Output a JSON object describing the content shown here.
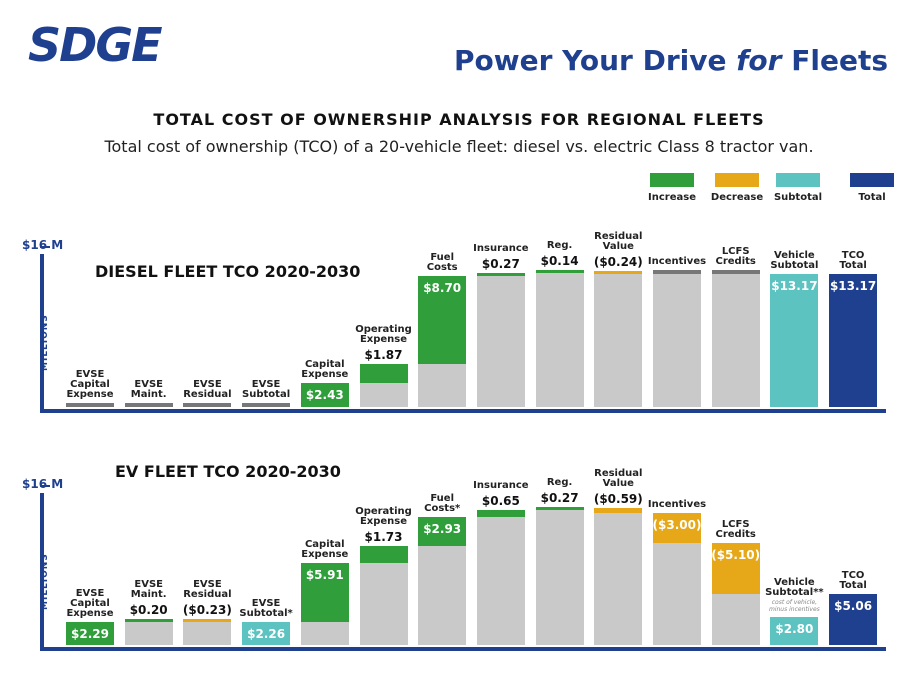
{
  "header": {
    "logo": "SDGE",
    "tagline_parts": [
      "Power Your Drive ",
      "for",
      " Fleets"
    ],
    "title": "TOTAL COST OF OWNERSHIP ANALYSIS FOR REGIONAL FLEETS",
    "subtitle": "Total cost of ownership (TCO) of a 20-vehicle fleet: diesel vs. electric Class 8 tractor van."
  },
  "legend": [
    {
      "name": "Increase",
      "color": "#2f9e3b"
    },
    {
      "name": "Decrease",
      "color": "#e6a718"
    },
    {
      "name": "Subtotal",
      "color": "#5cc3c0"
    },
    {
      "name": "Total",
      "color": "#1f3f8f"
    }
  ],
  "axis_label": "MILLIONS",
  "chart_data": [
    {
      "type": "waterfall",
      "title": "DIESEL FLEET TCO 2020-2030",
      "categories": [
        "EVSE\nCapital\nExpense",
        "EVSE\nMaint.",
        "EVSE\nResidual",
        "EVSE\nSubtotal",
        "Capital\nExpense",
        "Operating\nExpense",
        "Fuel\nCosts",
        "Insurance",
        "Reg.",
        "Residual\nValue",
        "Incentives",
        "LCFS\nCredits",
        "Vehicle\nSubtotal",
        "TCO\nTotal"
      ],
      "kinds": [
        "Increase",
        "Increase",
        "Increase",
        "Subtotal",
        "Increase",
        "Increase",
        "Increase",
        "Increase",
        "Increase",
        "Decrease",
        "Decrease",
        "Decrease",
        "Subtotal",
        "Total"
      ],
      "values": [
        0,
        0,
        0,
        0,
        2.43,
        1.87,
        8.7,
        0.27,
        0.14,
        -0.24,
        0,
        0,
        13.17,
        13.17
      ],
      "value_labels": [
        null,
        null,
        null,
        null,
        "$2.43",
        "$1.87",
        "$8.70",
        "$0.27",
        "$0.14",
        "($0.24)",
        null,
        null,
        "$13.17",
        "$13.17"
      ],
      "notes": [
        null,
        null,
        null,
        null,
        null,
        null,
        null,
        null,
        null,
        null,
        null,
        null,
        null,
        null
      ],
      "ylim": [
        0,
        16
      ],
      "yticks": [
        {
          "value": 16,
          "label": "$16 M"
        }
      ]
    },
    {
      "type": "waterfall",
      "title": "EV FLEET TCO 2020-2030",
      "categories": [
        "EVSE\nCapital\nExpense",
        "EVSE\nMaint.",
        "EVSE\nResidual",
        "EVSE\nSubtotal*",
        "Capital\nExpense",
        "Operating\nExpense",
        "Fuel\nCosts*",
        "Insurance",
        "Reg.",
        "Residual\nValue",
        "Incentives",
        "LCFS\nCredits",
        "Vehicle\nSubtotal**",
        "TCO\nTotal"
      ],
      "kinds": [
        "Increase",
        "Increase",
        "Decrease",
        "Subtotal",
        "Increase",
        "Increase",
        "Increase",
        "Increase",
        "Increase",
        "Decrease",
        "Decrease",
        "Decrease",
        "Subtotal",
        "Total"
      ],
      "values": [
        2.29,
        0.2,
        -0.23,
        2.26,
        5.91,
        1.73,
        2.93,
        0.65,
        0.27,
        -0.59,
        -3.0,
        -5.1,
        2.8,
        5.06
      ],
      "value_labels": [
        "$2.29",
        "$0.20",
        "($0.23)",
        "$2.26",
        "$5.91",
        "$1.73",
        "$2.93",
        "$0.65",
        "$0.27",
        "($0.59)",
        "($3.00)",
        "($5.10)",
        "$2.80",
        "$5.06"
      ],
      "notes": [
        null,
        null,
        null,
        null,
        null,
        null,
        null,
        null,
        null,
        null,
        null,
        null,
        "cost of vehicle,\nminus incentives",
        null
      ],
      "ylim": [
        0,
        16
      ],
      "yticks": [
        {
          "value": 16,
          "label": "$16 M"
        }
      ]
    }
  ]
}
